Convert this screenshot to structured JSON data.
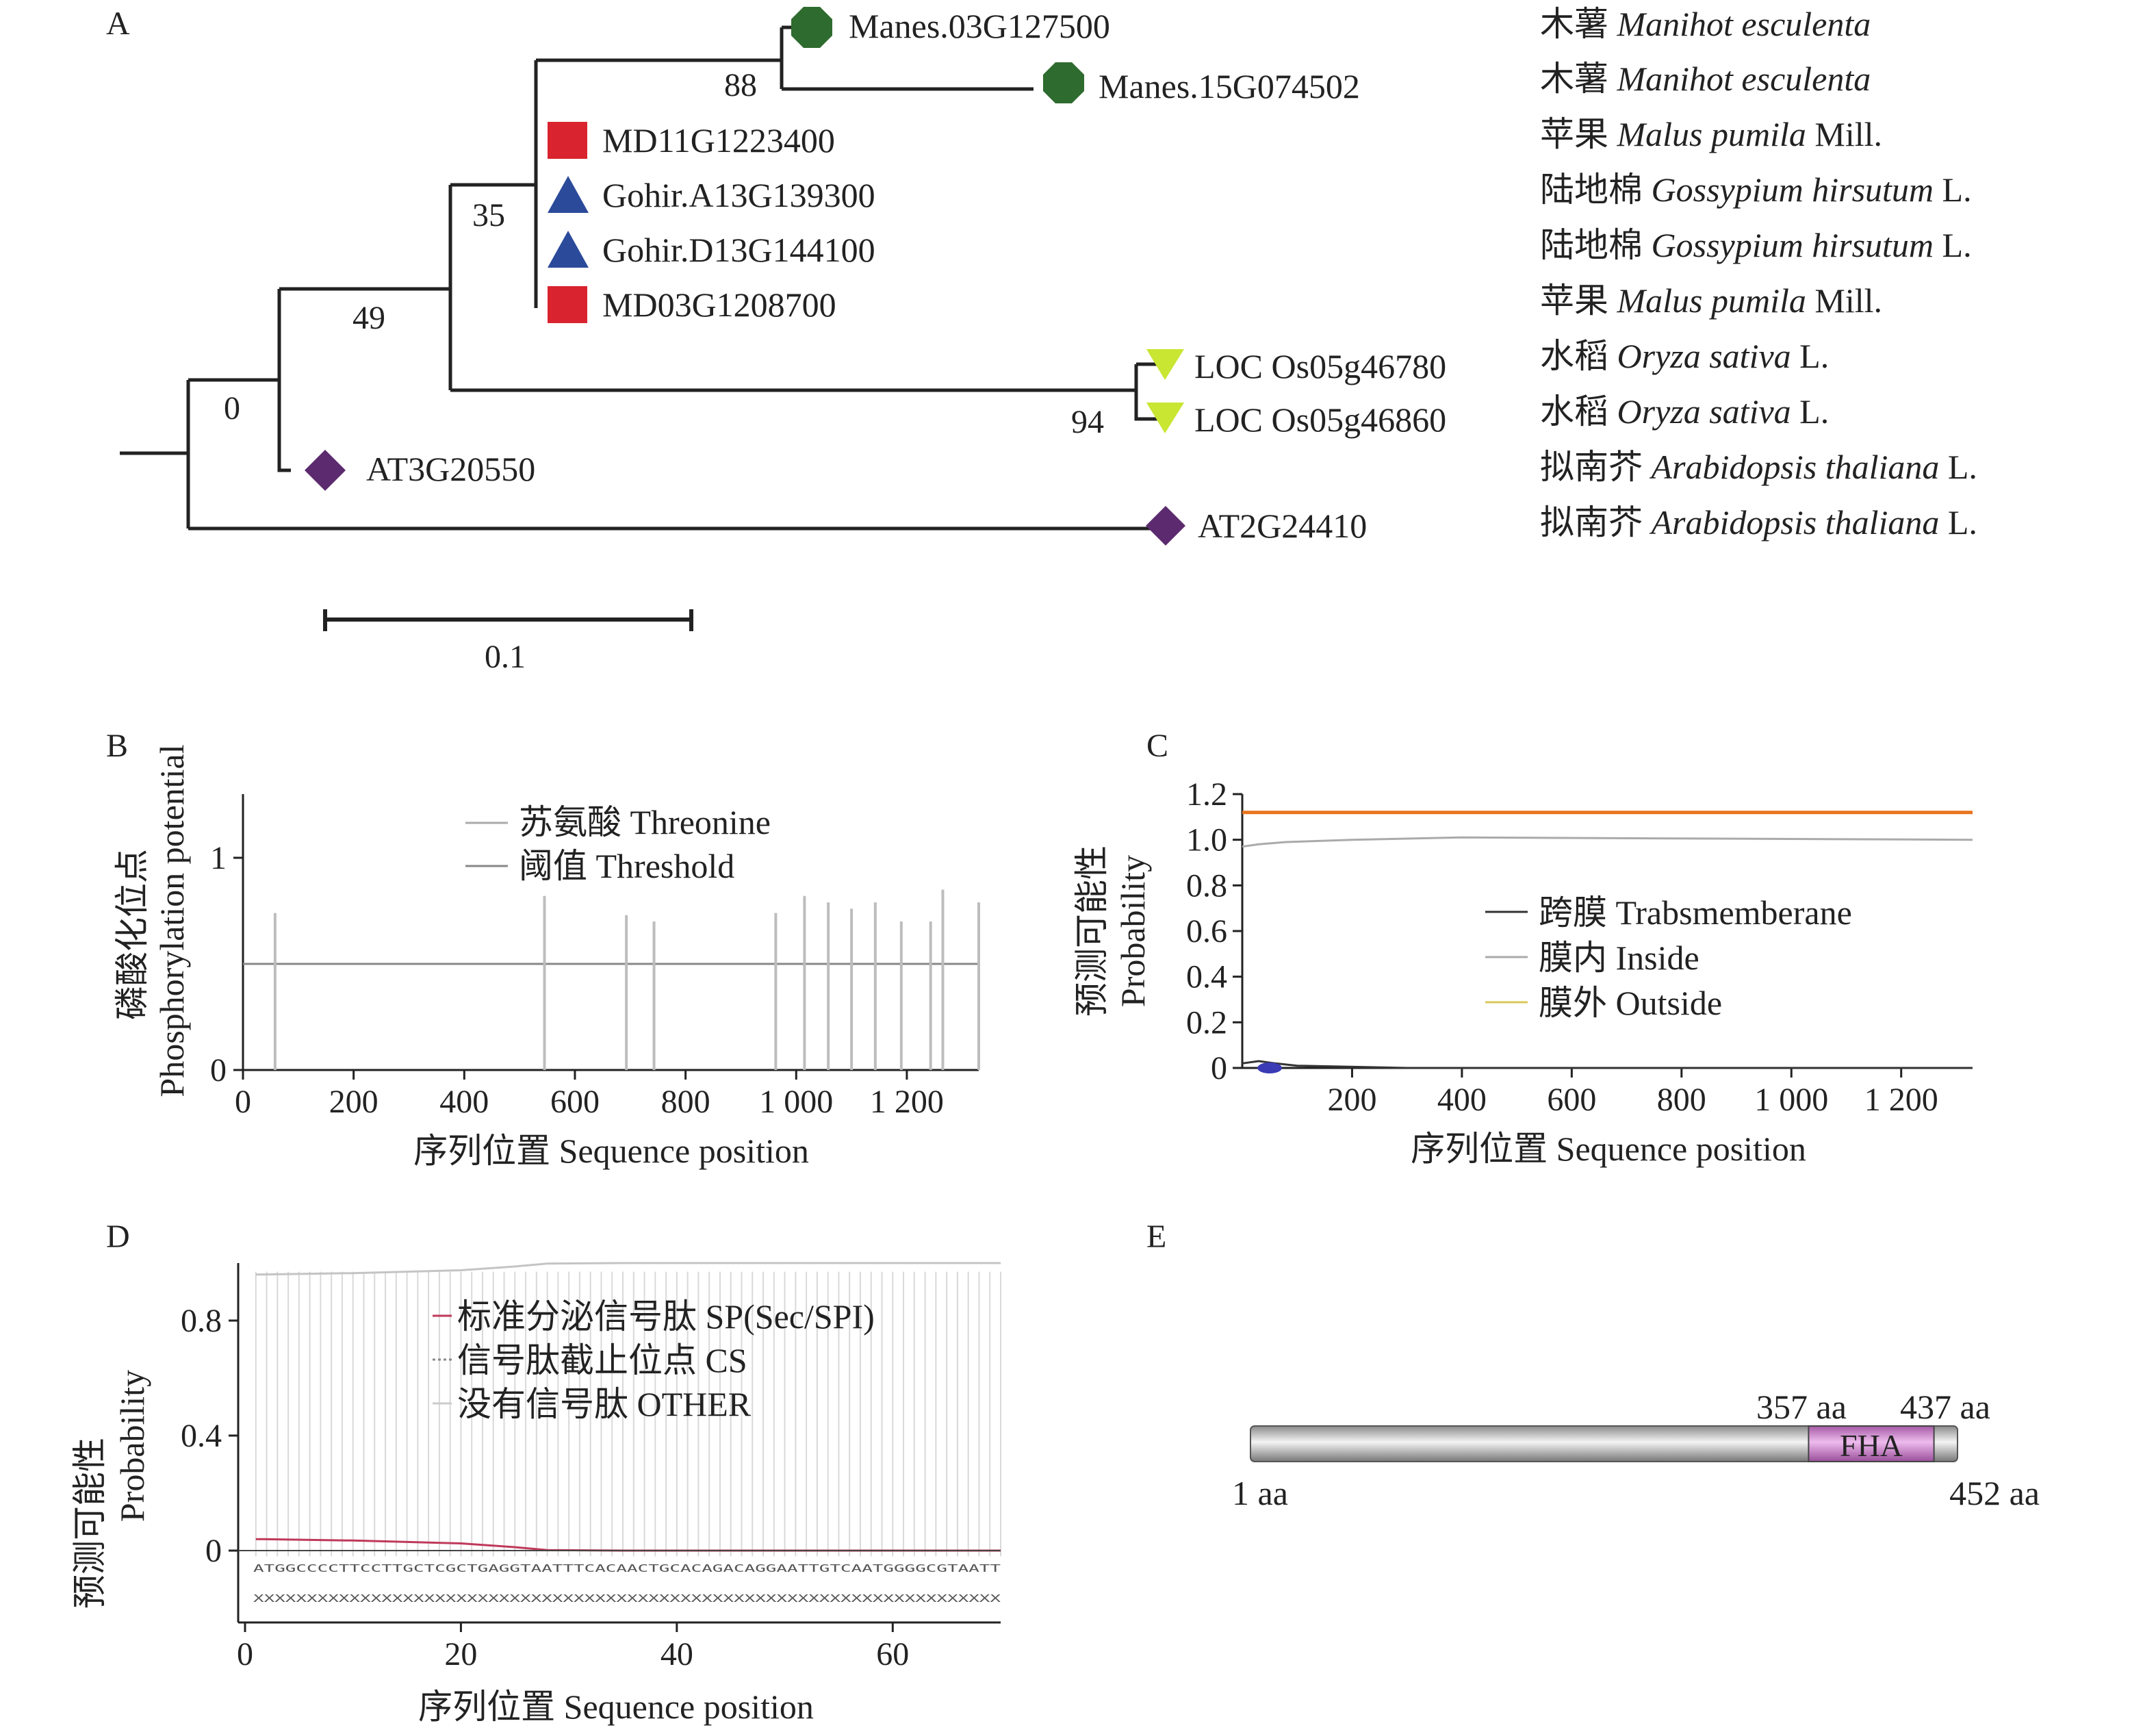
{
  "panels": {
    "a": "A",
    "b": "B",
    "c": "C",
    "d": "D",
    "e": "E"
  },
  "panel_a": {
    "tips": [
      {
        "id": "Manes.03G127500",
        "species_cn": "木薯",
        "species_latin": "Manihot esculenta",
        "authority": "",
        "marker": "octagon",
        "color": "#2e6b2e"
      },
      {
        "id": "Manes.15G074502",
        "species_cn": "木薯",
        "species_latin": "Manihot esculenta",
        "authority": "",
        "marker": "octagon",
        "color": "#2e6b2e"
      },
      {
        "id": "MD11G1223400",
        "species_cn": "苹果",
        "species_latin": "Malus pumila",
        "authority": "Mill.",
        "marker": "square",
        "color": "#d9232e"
      },
      {
        "id": "Gohir.A13G139300",
        "species_cn": "陆地棉",
        "species_latin": "Gossypium hirsutum",
        "authority": "L.",
        "marker": "triangle-up",
        "color": "#2b4a9a"
      },
      {
        "id": "Gohir.D13G144100",
        "species_cn": "陆地棉",
        "species_latin": "Gossypium hirsutum",
        "authority": "L.",
        "marker": "triangle-up",
        "color": "#2b4a9a"
      },
      {
        "id": "MD03G1208700",
        "species_cn": "苹果",
        "species_latin": "Malus pumila",
        "authority": "Mill.",
        "marker": "square",
        "color": "#d9232e"
      },
      {
        "id": "LOC Os05g46780",
        "species_cn": "水稻",
        "species_latin": "Oryza sativa",
        "authority": "L.",
        "marker": "triangle-down",
        "color": "#c8e632"
      },
      {
        "id": "LOC Os05g46860",
        "species_cn": "水稻",
        "species_latin": "Oryza sativa",
        "authority": "L.",
        "marker": "triangle-down",
        "color": "#c8e632"
      },
      {
        "id": "AT3G20550",
        "species_cn": "拟南芥",
        "species_latin": "Arabidopsis thaliana",
        "authority": "L.",
        "marker": "diamond",
        "color": "#5c2a6e"
      },
      {
        "id": "AT2G24410",
        "species_cn": "拟南芥",
        "species_latin": "Arabidopsis thaliana",
        "authority": "L.",
        "marker": "diamond",
        "color": "#5c2a6e"
      }
    ],
    "bootstrap": [
      "88",
      "35",
      "49",
      "0",
      "94"
    ],
    "scale_label": "0.1"
  },
  "chart_data": [
    {
      "panel": "B",
      "type": "bar",
      "ylabel_cn": "磷酸化位点",
      "ylabel_en": "Phosphorylation potential",
      "xlabel": "序列位置 Sequence position",
      "xticks": [
        "0",
        "200",
        "400",
        "600",
        "800",
        "1 000",
        "1 200"
      ],
      "yticks": [
        "0",
        "1"
      ],
      "xlim": [
        0,
        1330
      ],
      "ylim": [
        0,
        1.3
      ],
      "threshold": 0.5,
      "legend": [
        "苏氨酸 Threonine",
        "阈值 Threshold"
      ],
      "series": [
        {
          "name": "苏氨酸 Threonine",
          "x": [
            58,
            545,
            693,
            743,
            963,
            1015,
            1058,
            1100,
            1143,
            1190,
            1243,
            1265,
            1330
          ],
          "values": [
            0.74,
            0.82,
            0.73,
            0.7,
            0.74,
            0.82,
            0.79,
            0.76,
            0.79,
            0.7,
            0.7,
            0.85,
            0.79
          ]
        }
      ]
    },
    {
      "panel": "C",
      "type": "line",
      "ylabel_cn": "预测可能性",
      "ylabel_en": "Probability",
      "xlabel": "序列位置 Sequence position",
      "xticks": [
        "200",
        "400",
        "600",
        "800",
        "1 000",
        "1 200"
      ],
      "yticks": [
        "0",
        "0.2",
        "0.4",
        "0.6",
        "0.8",
        "1.0",
        "1.2"
      ],
      "xlim": [
        0,
        1330
      ],
      "ylim": [
        0,
        1.2
      ],
      "legend": [
        "跨膜 Trabsmemberane",
        "膜内 Inside",
        "膜外 Outside"
      ],
      "series": [
        {
          "name": "跨膜 Trabsmemberane",
          "x": [
            0,
            30,
            60,
            100,
            300,
            1330
          ],
          "values": [
            0.02,
            0.03,
            0.02,
            0.01,
            0.0,
            0.0
          ]
        },
        {
          "name": "膜内 Inside",
          "x": [
            0,
            30,
            80,
            200,
            400,
            1330
          ],
          "values": [
            0.97,
            0.98,
            0.99,
            1.0,
            1.01,
            1.0
          ]
        },
        {
          "name": "膜外 Outside",
          "x": [
            0,
            1330
          ],
          "values": [
            1.12,
            1.12
          ]
        }
      ]
    },
    {
      "panel": "D",
      "type": "line",
      "ylabel_cn": "预测可能性",
      "ylabel_en": "Probability",
      "xlabel": "序列位置 Sequence position",
      "xticks": [
        "0",
        "20",
        "40",
        "60"
      ],
      "yticks": [
        "0",
        "0.4",
        "0.8"
      ],
      "xlim": [
        0,
        70
      ],
      "ylim": [
        -0.25,
        1.0
      ],
      "legend": [
        "标准分泌信号肽 SP(Sec/SPI)",
        "信号肽截止位点 CS",
        "没有信号肽 OTHER"
      ],
      "sequence": "ATGGCCCCTTCCTTGCTCGCTGAGGTAATTTCACAACTGCACAGACAGGAATTGTCAATGGGGCGTAATT",
      "cs_row": "XXXXXXXXXXXXXXXXXXXXXXXXXXXXXXXXXXXXXXXXXXXXXXXXXXXXXXXXXXXXXXXXXXXXXX",
      "series": [
        {
          "name": "标准分泌信号肽 SP(Sec/SPI)",
          "x": [
            1,
            10,
            20,
            25,
            28,
            35,
            70
          ],
          "values": [
            0.04,
            0.035,
            0.025,
            0.012,
            0.002,
            0.0,
            0.0
          ]
        },
        {
          "name": "信号肽截止位点 CS",
          "x": [
            1,
            70
          ],
          "values": [
            0.0,
            0.0
          ]
        },
        {
          "name": "没有信号肽 OTHER",
          "x": [
            1,
            10,
            20,
            25,
            28,
            35,
            70
          ],
          "values": [
            0.96,
            0.965,
            0.975,
            0.988,
            0.998,
            1.0,
            1.0
          ]
        }
      ]
    }
  ],
  "panel_e": {
    "start": "1 aa",
    "end": "452 aa",
    "domain_start": "357 aa",
    "domain_end": "437 aa",
    "domain_name": "FHA",
    "length_aa": 452,
    "domain_from": 357,
    "domain_to": 437,
    "domain_color": "#d88ad8"
  }
}
